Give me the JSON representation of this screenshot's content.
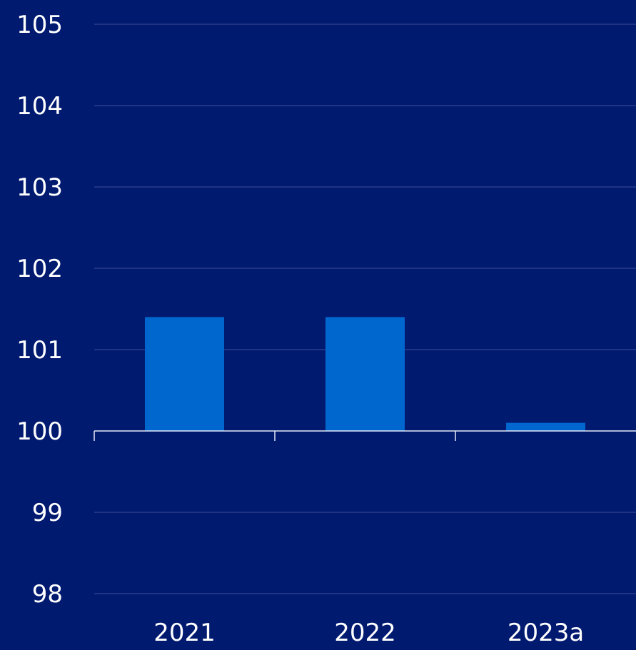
{
  "chart_data": {
    "type": "bar",
    "title": "",
    "xlabel": "",
    "ylabel": "",
    "categories": [
      "2021",
      "2022",
      "2023a"
    ],
    "values": [
      101.4,
      101.4,
      100.1
    ],
    "baseline": 100,
    "ylim": [
      98,
      105
    ],
    "yticks": [
      "98",
      "99",
      "100",
      "101",
      "102",
      "103",
      "104",
      "105"
    ],
    "grid": true,
    "legend": "none"
  },
  "colors": {
    "background": "#001a70",
    "bar": "#0067cf",
    "grid": "#3f4f96",
    "axis": "#e6ebf5",
    "text": "#ffffff"
  }
}
